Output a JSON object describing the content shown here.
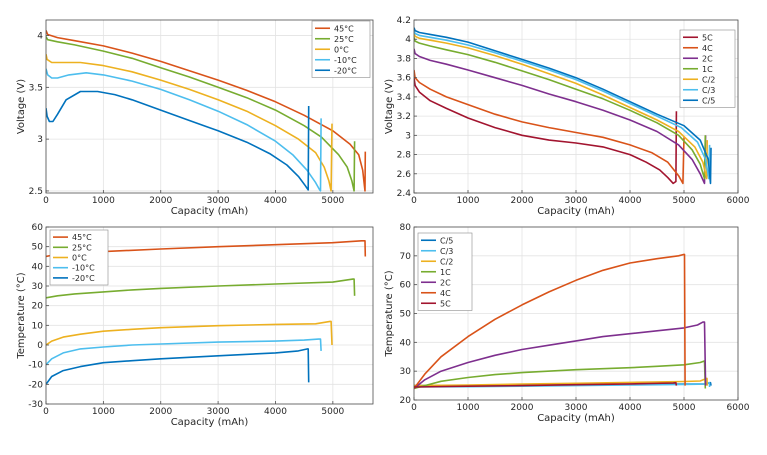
{
  "chart_data": [
    {
      "type": "line",
      "xlabel": "Capacity (mAh)",
      "ylabel": "Voltage (V)",
      "xlim": [
        0,
        5700
      ],
      "ylim": [
        2.48,
        4.15
      ],
      "xticks": [
        0,
        1000,
        2000,
        3000,
        4000,
        5000
      ],
      "yticks": [
        2.5,
        3,
        3.5,
        4
      ],
      "ytick_labels": [
        "2.5",
        "3",
        "3.5",
        "4"
      ],
      "grid": true,
      "legend_position": "top-right",
      "series": [
        {
          "name": "45°C",
          "color": "#D95319",
          "x": [
            0,
            30,
            200,
            500,
            1000,
            1500,
            2000,
            2500,
            3000,
            3500,
            4000,
            4500,
            5000,
            5300,
            5450,
            5520,
            5550,
            5560,
            5565
          ],
          "y": [
            4.05,
            4.01,
            3.98,
            3.95,
            3.9,
            3.83,
            3.75,
            3.66,
            3.57,
            3.47,
            3.36,
            3.23,
            3.08,
            2.95,
            2.85,
            2.7,
            2.55,
            2.5,
            2.88
          ]
        },
        {
          "name": "25°C",
          "color": "#77AC30",
          "x": [
            0,
            30,
            200,
            500,
            1000,
            1500,
            2000,
            2500,
            3000,
            3500,
            4000,
            4500,
            4800,
            5100,
            5250,
            5330,
            5370,
            5380
          ],
          "y": [
            3.99,
            3.96,
            3.94,
            3.91,
            3.85,
            3.78,
            3.69,
            3.6,
            3.5,
            3.4,
            3.28,
            3.13,
            3.02,
            2.85,
            2.73,
            2.6,
            2.5,
            2.98
          ]
        },
        {
          "name": "0°C",
          "color": "#EDB120",
          "x": [
            0,
            20,
            100,
            300,
            600,
            1000,
            1500,
            2000,
            2500,
            3000,
            3500,
            4000,
            4400,
            4700,
            4850,
            4930,
            4970,
            4985
          ],
          "y": [
            3.82,
            3.77,
            3.74,
            3.74,
            3.74,
            3.71,
            3.65,
            3.57,
            3.48,
            3.38,
            3.27,
            3.13,
            3.0,
            2.87,
            2.73,
            2.6,
            2.5,
            3.15
          ]
        },
        {
          "name": "-10°C",
          "color": "#4DBEEE",
          "x": [
            0,
            30,
            100,
            200,
            400,
            700,
            1000,
            1500,
            2000,
            2500,
            3000,
            3500,
            4000,
            4300,
            4550,
            4700,
            4760,
            4785,
            4795
          ],
          "y": [
            3.68,
            3.62,
            3.59,
            3.59,
            3.62,
            3.64,
            3.62,
            3.56,
            3.48,
            3.38,
            3.27,
            3.14,
            2.98,
            2.85,
            2.7,
            2.58,
            2.52,
            2.5,
            3.2
          ]
        },
        {
          "name": "-20°C",
          "color": "#0072BD",
          "x": [
            0,
            20,
            60,
            120,
            200,
            350,
            600,
            900,
            1200,
            1500,
            2000,
            2500,
            3000,
            3500,
            3900,
            4200,
            4400,
            4520,
            4570,
            4580
          ],
          "y": [
            3.3,
            3.22,
            3.17,
            3.17,
            3.24,
            3.38,
            3.46,
            3.46,
            3.43,
            3.38,
            3.28,
            3.18,
            3.08,
            2.97,
            2.86,
            2.75,
            2.64,
            2.55,
            2.51,
            3.32
          ]
        }
      ]
    },
    {
      "type": "line",
      "xlabel": "Capacity (mAh)",
      "ylabel": "Voltage (V)",
      "xlim": [
        0,
        6000
      ],
      "ylim": [
        2.4,
        4.2
      ],
      "xticks": [
        0,
        1000,
        2000,
        3000,
        4000,
        5000,
        6000
      ],
      "yticks": [
        2.4,
        2.6,
        2.8,
        3,
        3.2,
        3.4,
        3.6,
        3.8,
        4,
        4.2
      ],
      "ytick_labels": [
        "2.4",
        "2.6",
        "2.8",
        "3",
        "3.2",
        "3.4",
        "3.6",
        "3.8",
        "4",
        "4.2"
      ],
      "grid": true,
      "legend_position": "top-right",
      "series": [
        {
          "name": "5C",
          "color": "#A2142F",
          "x": [
            0,
            20,
            100,
            300,
            600,
            1000,
            1500,
            2000,
            2500,
            3000,
            3500,
            4000,
            4300,
            4550,
            4700,
            4800,
            4850,
            4860
          ],
          "y": [
            3.6,
            3.52,
            3.45,
            3.36,
            3.28,
            3.18,
            3.08,
            3.0,
            2.95,
            2.92,
            2.88,
            2.8,
            2.72,
            2.64,
            2.56,
            2.5,
            2.52,
            3.25
          ]
        },
        {
          "name": "4C",
          "color": "#D95319",
          "x": [
            0,
            20,
            100,
            300,
            600,
            1000,
            1500,
            2000,
            2500,
            3000,
            3500,
            4000,
            4400,
            4700,
            4900,
            4980,
            5000
          ],
          "y": [
            3.68,
            3.6,
            3.55,
            3.48,
            3.4,
            3.32,
            3.22,
            3.14,
            3.08,
            3.03,
            2.98,
            2.9,
            2.82,
            2.72,
            2.58,
            2.5,
            2.98
          ]
        },
        {
          "name": "2C",
          "color": "#7E2F8E",
          "x": [
            0,
            20,
            100,
            300,
            600,
            1000,
            1500,
            2000,
            2500,
            3000,
            3500,
            4000,
            4500,
            4900,
            5150,
            5300,
            5380,
            5400
          ],
          "y": [
            3.9,
            3.85,
            3.82,
            3.78,
            3.74,
            3.68,
            3.6,
            3.52,
            3.43,
            3.35,
            3.26,
            3.16,
            3.04,
            2.9,
            2.75,
            2.6,
            2.5,
            3.0
          ]
        },
        {
          "name": "1C",
          "color": "#77AC30",
          "x": [
            0,
            20,
            100,
            300,
            600,
            1000,
            1500,
            2000,
            2500,
            3000,
            3500,
            4000,
            4500,
            4900,
            5150,
            5300,
            5380,
            5395
          ],
          "y": [
            4.02,
            3.98,
            3.96,
            3.93,
            3.89,
            3.84,
            3.76,
            3.67,
            3.58,
            3.48,
            3.38,
            3.26,
            3.13,
            3.0,
            2.85,
            2.7,
            2.55,
            3.0
          ]
        },
        {
          "name": "C/2",
          "color": "#EDB120",
          "x": [
            0,
            20,
            100,
            300,
            600,
            1000,
            1500,
            2000,
            2500,
            3000,
            3500,
            4000,
            4500,
            4900,
            5200,
            5350,
            5420,
            5430
          ],
          "y": [
            4.06,
            4.03,
            4.01,
            3.99,
            3.96,
            3.91,
            3.83,
            3.74,
            3.64,
            3.54,
            3.42,
            3.29,
            3.16,
            3.04,
            2.88,
            2.72,
            2.55,
            2.95
          ]
        },
        {
          "name": "C/3",
          "color": "#4DBEEE",
          "x": [
            0,
            20,
            100,
            300,
            600,
            1000,
            1500,
            2000,
            2500,
            3000,
            3500,
            4000,
            4500,
            4950,
            5250,
            5400,
            5460,
            5475
          ],
          "y": [
            4.09,
            4.06,
            4.04,
            4.02,
            3.99,
            3.94,
            3.86,
            3.77,
            3.68,
            3.58,
            3.46,
            3.33,
            3.2,
            3.08,
            2.93,
            2.75,
            2.55,
            2.9
          ]
        },
        {
          "name": "C/5",
          "color": "#0072BD",
          "x": [
            0,
            20,
            100,
            300,
            600,
            1000,
            1500,
            2000,
            2500,
            3000,
            3500,
            4000,
            4500,
            5000,
            5300,
            5450,
            5490,
            5500
          ],
          "y": [
            4.12,
            4.09,
            4.07,
            4.05,
            4.02,
            3.97,
            3.88,
            3.79,
            3.7,
            3.6,
            3.48,
            3.35,
            3.22,
            3.1,
            2.95,
            2.75,
            2.5,
            2.87
          ]
        }
      ]
    },
    {
      "type": "line",
      "xlabel": "Capacity (mAh)",
      "ylabel": "Temperature (°C)",
      "xlim": [
        0,
        5700
      ],
      "ylim": [
        -30,
        60
      ],
      "xticks": [
        0,
        1000,
        2000,
        3000,
        4000,
        5000
      ],
      "yticks": [
        -30,
        -20,
        -10,
        0,
        10,
        20,
        30,
        40,
        50,
        60
      ],
      "ytick_labels": [
        "-30",
        "-20",
        "-10",
        "0",
        "10",
        "20",
        "30",
        "40",
        "50",
        "60"
      ],
      "grid": true,
      "legend_position": "top-left",
      "series": [
        {
          "name": "45°C",
          "color": "#D95319",
          "x": [
            0,
            200,
            600,
            1000,
            2000,
            3000,
            4000,
            5000,
            5500,
            5560,
            5565
          ],
          "y": [
            45,
            46.2,
            47,
            47.5,
            48.8,
            50,
            51,
            52,
            53,
            53,
            45
          ]
        },
        {
          "name": "25°C",
          "color": "#77AC30",
          "x": [
            0,
            200,
            500,
            1000,
            1500,
            2000,
            3000,
            4000,
            5000,
            5350,
            5370,
            5380
          ],
          "y": [
            24,
            25,
            26,
            27,
            28,
            28.8,
            30,
            31,
            32,
            33.5,
            33.5,
            25
          ]
        },
        {
          "name": "0°C",
          "color": "#EDB120",
          "x": [
            0,
            100,
            300,
            600,
            1000,
            1500,
            2000,
            3000,
            4000,
            4700,
            4950,
            4970,
            4985
          ],
          "y": [
            0,
            2,
            4,
            5.5,
            7,
            8,
            8.8,
            9.8,
            10.5,
            10.8,
            12,
            12,
            0
          ]
        },
        {
          "name": "-10°C",
          "color": "#4DBEEE",
          "x": [
            0,
            100,
            300,
            600,
            1000,
            1500,
            2000,
            3000,
            4000,
            4500,
            4750,
            4785,
            4795
          ],
          "y": [
            -10,
            -7,
            -4,
            -2,
            -1,
            0,
            0.5,
            1.5,
            2,
            2.5,
            3,
            3,
            -3
          ]
        },
        {
          "name": "-20°C",
          "color": "#0072BD",
          "x": [
            0,
            100,
            300,
            600,
            1000,
            1500,
            2000,
            3000,
            4000,
            4400,
            4560,
            4570,
            4580
          ],
          "y": [
            -20,
            -16,
            -13,
            -11,
            -9,
            -8,
            -7,
            -5.5,
            -4,
            -3,
            -2,
            -2,
            -19
          ]
        }
      ]
    },
    {
      "type": "line",
      "xlabel": "Capacity (mAh)",
      "ylabel": "Temperature (°C)",
      "xlim": [
        0,
        6000
      ],
      "ylim": [
        20,
        80
      ],
      "xticks": [
        0,
        1000,
        2000,
        3000,
        4000,
        5000,
        6000
      ],
      "yticks": [
        20,
        30,
        40,
        50,
        60,
        70,
        80
      ],
      "ytick_labels": [
        "20",
        "30",
        "40",
        "50",
        "60",
        "70",
        "80"
      ],
      "grid": true,
      "legend_position": "top-left",
      "series": [
        {
          "name": "C/5",
          "color": "#0072BD",
          "x": [
            0,
            1000,
            2000,
            3000,
            4000,
            5000,
            5400,
            5480,
            5490,
            5500
          ],
          "y": [
            25,
            25,
            25.2,
            25.3,
            25.4,
            25.5,
            25.6,
            26,
            26,
            25
          ]
        },
        {
          "name": "C/3",
          "color": "#4DBEEE",
          "x": [
            0,
            1000,
            2000,
            3000,
            4000,
            5000,
            5400,
            5460,
            5470,
            5475
          ],
          "y": [
            24.5,
            24.6,
            24.8,
            25,
            25.2,
            25.4,
            25.5,
            26,
            26,
            24.5
          ]
        },
        {
          "name": "C/2",
          "color": "#EDB120",
          "x": [
            0,
            1000,
            2000,
            3000,
            4000,
            5000,
            5300,
            5420,
            5425,
            5430
          ],
          "y": [
            25,
            25.2,
            25.5,
            25.8,
            26.1,
            26.4,
            26.6,
            27.5,
            27.5,
            25
          ]
        },
        {
          "name": "1C",
          "color": "#77AC30",
          "x": [
            0,
            200,
            500,
            1000,
            1500,
            2000,
            3000,
            4000,
            4500,
            5000,
            5300,
            5370,
            5380,
            5395
          ],
          "y": [
            24,
            25,
            26.5,
            27.8,
            28.8,
            29.5,
            30.5,
            31.2,
            31.7,
            32.2,
            33,
            33.5,
            33.5,
            24
          ]
        },
        {
          "name": "2C",
          "color": "#7E2F8E",
          "x": [
            0,
            200,
            500,
            1000,
            1500,
            2000,
            2500,
            3000,
            3500,
            4000,
            4500,
            5000,
            5250,
            5350,
            5380,
            5400
          ],
          "y": [
            24,
            27,
            30,
            33,
            35.5,
            37.5,
            39,
            40.5,
            42,
            43,
            44,
            45,
            46,
            47,
            47,
            25
          ]
        },
        {
          "name": "4C",
          "color": "#D95319",
          "x": [
            0,
            200,
            500,
            1000,
            1500,
            2000,
            2500,
            3000,
            3500,
            4000,
            4500,
            4900,
            5000,
            5010,
            5020
          ],
          "y": [
            24,
            29,
            35,
            42,
            48,
            53,
            57.5,
            61.5,
            65,
            67.5,
            69,
            70,
            70.5,
            70.5,
            25
          ]
        },
        {
          "name": "5C",
          "color": "#A2142F",
          "x": [
            0,
            1000,
            2000,
            3000,
            4000,
            4800,
            4850,
            4860
          ],
          "y": [
            24.5,
            24.8,
            25,
            25.3,
            25.6,
            25.9,
            26,
            25
          ]
        }
      ]
    }
  ]
}
